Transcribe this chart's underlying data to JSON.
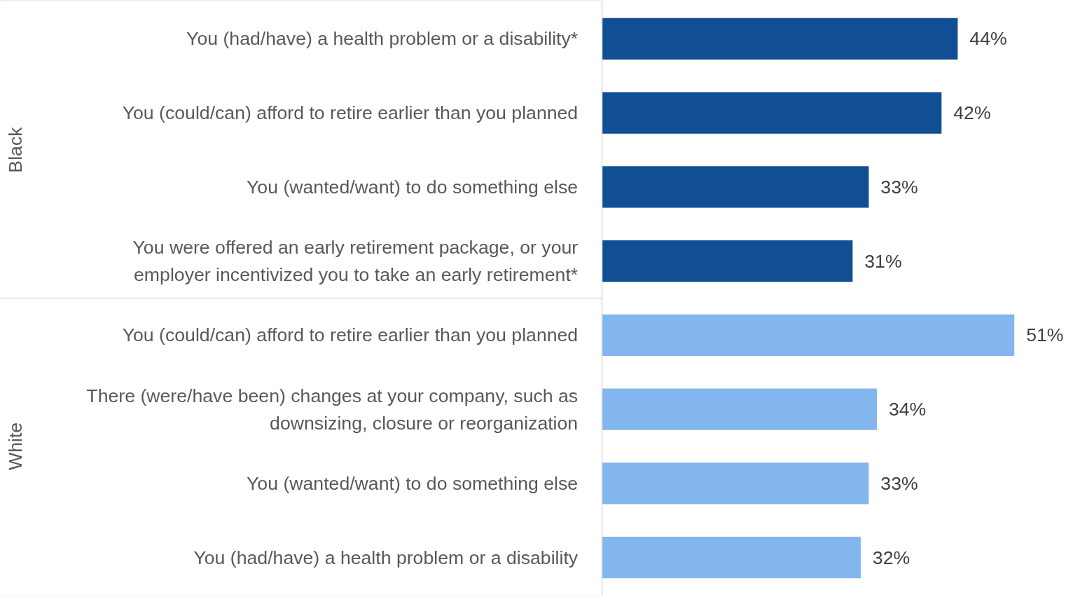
{
  "chart_data": {
    "type": "bar",
    "orientation": "horizontal",
    "categories": [
      "You (had/have) a health problem or a disability*",
      "You (could/can) afford to retire earlier than you planned",
      "You (wanted/want) to do something else",
      "You were offered an early retirement package, or your employer incentivized you to take an early retirement*",
      "You (could/can) afford to retire earlier than you planned",
      "There (were/have been) changes at your company, such as downsizing, closure or reorganization",
      "You (wanted/want) to do something else",
      "You (had/have) a health problem or a disability"
    ],
    "values": [
      44,
      42,
      33,
      31,
      51,
      34,
      33,
      32
    ],
    "value_labels": [
      "44%",
      "42%",
      "33%",
      "31%",
      "51%",
      "34%",
      "33%",
      "32%"
    ],
    "colors": [
      "#114f94",
      "#114f94",
      "#114f94",
      "#114f94",
      "#83b6ee",
      "#83b6ee",
      "#83b6ee",
      "#83b6ee"
    ],
    "annotations": [
      "Black",
      "White"
    ]
  }
}
